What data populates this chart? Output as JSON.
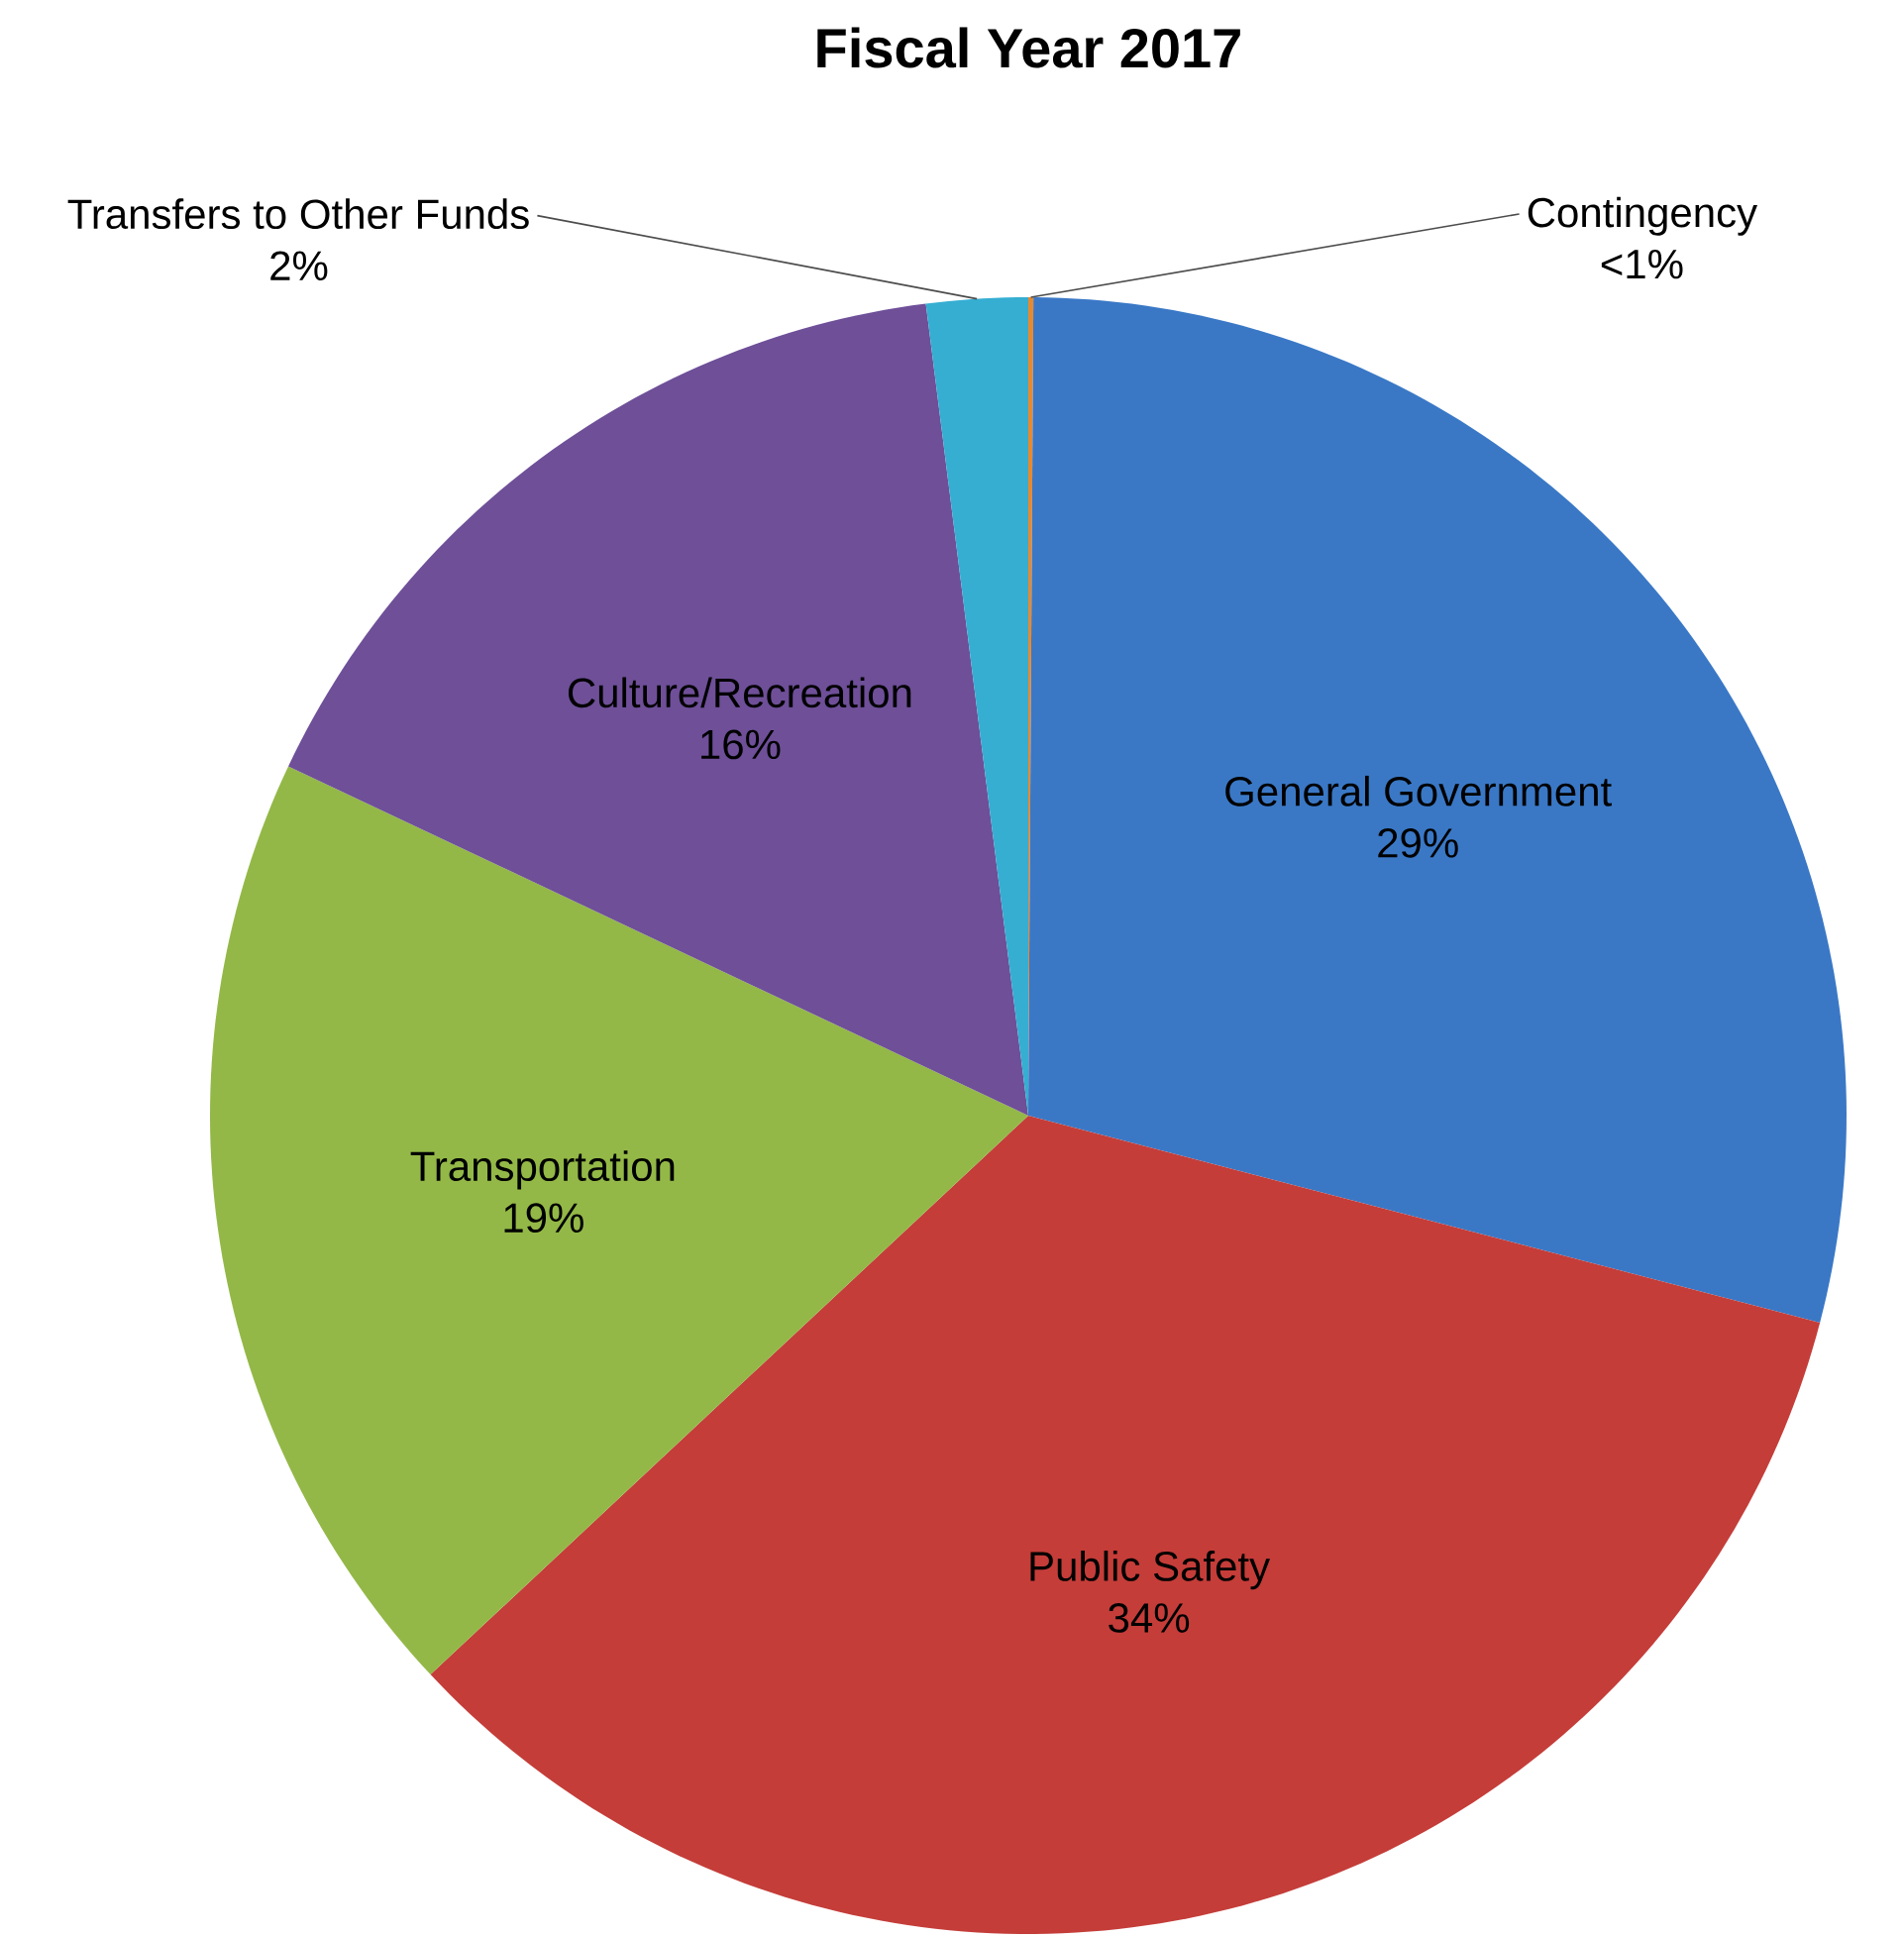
{
  "chart_data": {
    "type": "pie",
    "title": "Fiscal Year 2017",
    "categories": [
      "Contingency",
      "General Government",
      "Public Safety",
      "Transportation",
      "Culture/Recreation",
      "Transfers to Other Funds"
    ],
    "values": [
      0.1,
      29,
      34,
      19,
      16,
      2
    ],
    "value_labels": [
      "<1%",
      "29%",
      "34%",
      "19%",
      "16%",
      "2%"
    ],
    "colors": [
      "#e8892f",
      "#3a78c6",
      "#c43d39",
      "#93b847",
      "#6e4f98",
      "#35aed2"
    ],
    "data_labels": true
  }
}
